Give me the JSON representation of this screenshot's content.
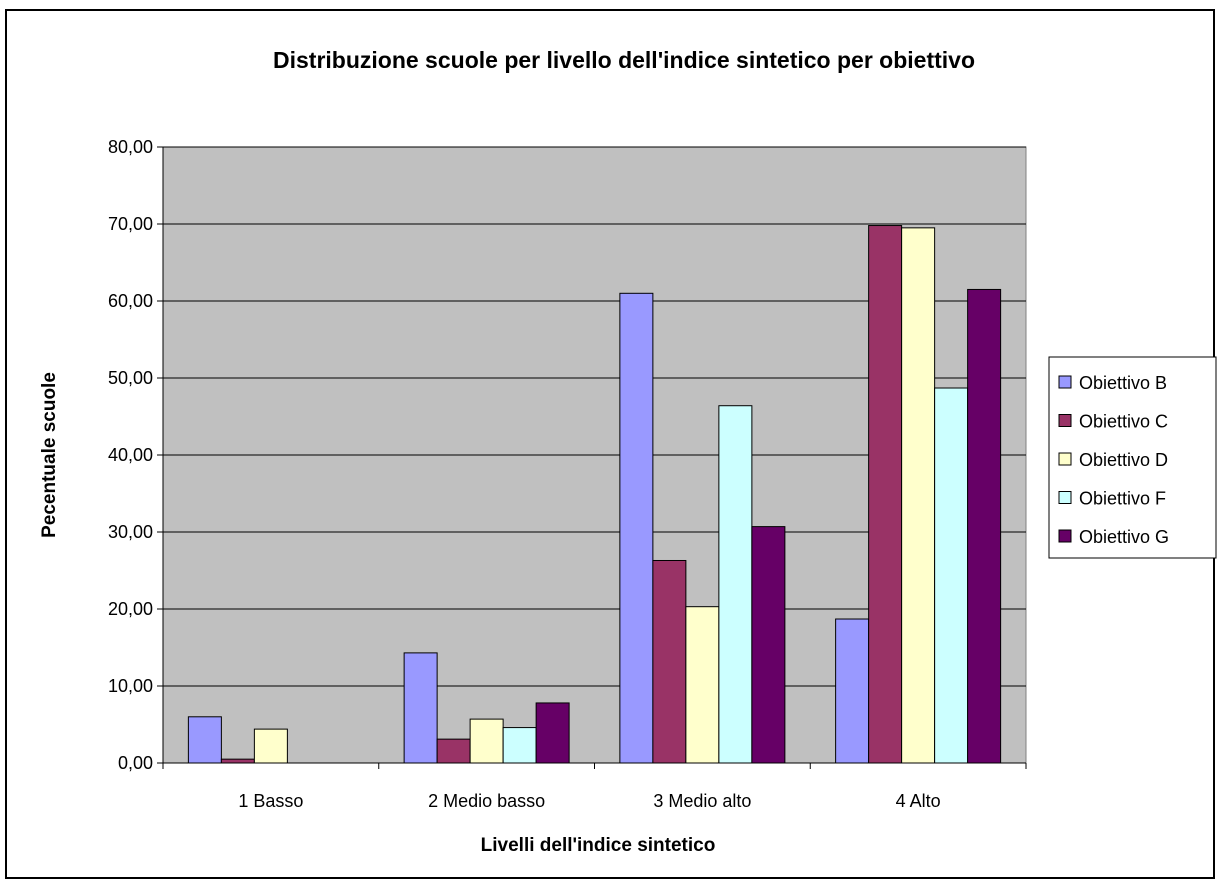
{
  "chart_data": {
    "type": "bar",
    "title": "Distribuzione scuole per livello dell'indice sintetico per obiettivo",
    "xlabel": "Livelli dell'indice sintetico",
    "ylabel": "Pecentuale scuole",
    "categories": [
      "1 Basso",
      "2 Medio basso",
      "3 Medio alto",
      "4 Alto"
    ],
    "ylim": [
      0,
      80
    ],
    "yticks": [
      "0,00",
      "10,00",
      "20,00",
      "30,00",
      "40,00",
      "50,00",
      "60,00",
      "70,00",
      "80,00"
    ],
    "grid": true,
    "legend_position": "right",
    "plot_background": "#c0c0c0",
    "series": [
      {
        "name": "Obiettivo B",
        "color": "#9999ff",
        "values": [
          6.0,
          14.3,
          61.0,
          18.7
        ]
      },
      {
        "name": "Obiettivo C",
        "color": "#993366",
        "values": [
          0.5,
          3.1,
          26.3,
          69.8
        ]
      },
      {
        "name": "Obiettivo D",
        "color": "#ffffcc",
        "values": [
          4.4,
          5.7,
          20.3,
          69.5
        ]
      },
      {
        "name": "Obiettivo F",
        "color": "#ccffff",
        "values": [
          0.0,
          4.6,
          46.4,
          48.7
        ]
      },
      {
        "name": "Obiettivo G",
        "color": "#660066",
        "values": [
          0.0,
          7.8,
          30.7,
          61.5
        ]
      }
    ]
  }
}
